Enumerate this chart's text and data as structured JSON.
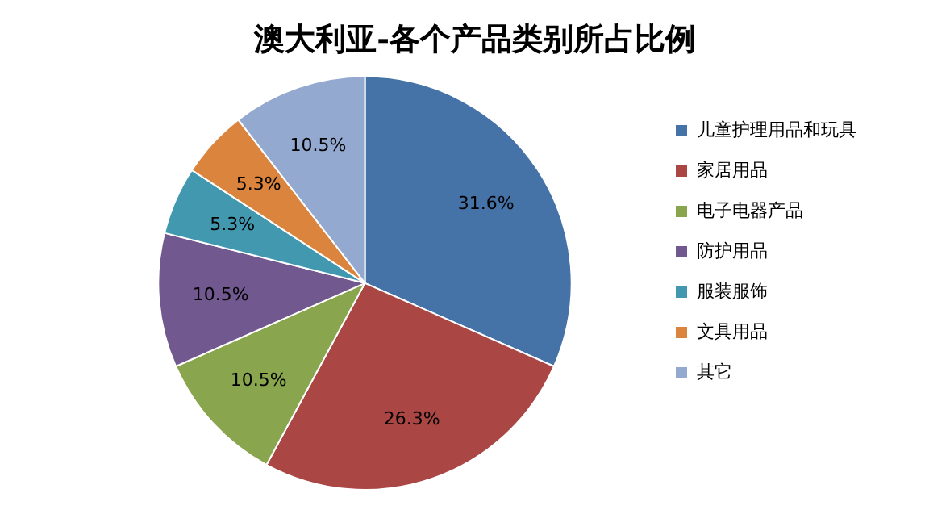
{
  "chart_data": {
    "type": "pie",
    "title": "澳大利亚-各个产品类别所占比例",
    "categories": [
      "儿童护理用品和玩具",
      "家居用品",
      "电子电器产品",
      "防护用品",
      "服装服饰",
      "文具用品",
      "其它"
    ],
    "values": [
      31.6,
      26.3,
      10.5,
      10.5,
      5.3,
      5.3,
      10.5
    ],
    "value_labels": [
      "31.6%",
      "26.3%",
      "10.5%",
      "10.5%",
      "5.3%",
      "5.3%",
      "10.5%"
    ],
    "colors": [
      "#4572a7",
      "#aa4643",
      "#89a54e",
      "#71588f",
      "#4198af",
      "#db843d",
      "#93a9cf"
    ],
    "legend": "right"
  }
}
